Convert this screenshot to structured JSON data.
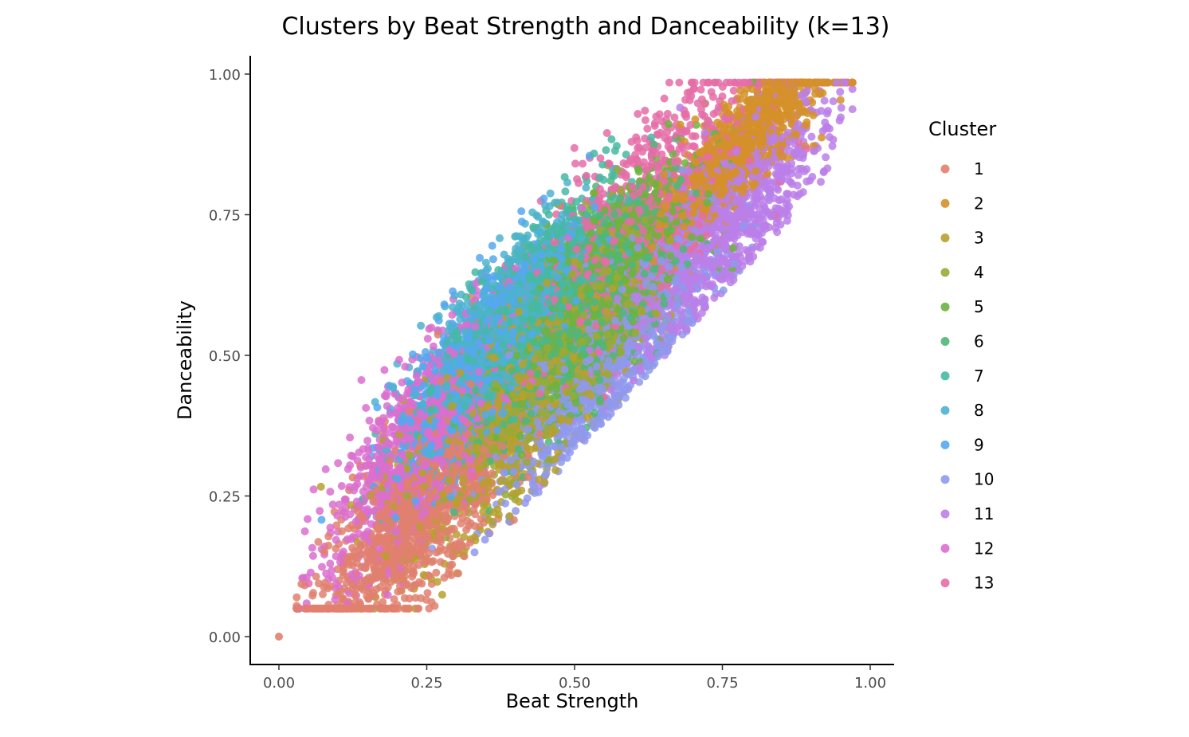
{
  "chart_data": {
    "type": "scatter",
    "title": "Clusters by Beat Strength and Danceability (k=13)",
    "xlabel": "Beat Strength",
    "ylabel": "Danceability",
    "xlim": [
      -0.05,
      1.04
    ],
    "ylim": [
      -0.05,
      1.03
    ],
    "x_ticks": [
      "0.00",
      "0.25",
      "0.50",
      "0.75",
      "1.00"
    ],
    "y_ticks": [
      "0.00",
      "0.25",
      "0.50",
      "0.75",
      "1.00"
    ],
    "grid": false,
    "legend": {
      "title": "Cluster",
      "placement": "right"
    },
    "point_count": 14000,
    "series": [
      {
        "name": "1",
        "color": "#E1806F",
        "center": [
          0.23,
          0.21
        ],
        "spread": [
          0.08,
          0.1
        ]
      },
      {
        "name": "2",
        "color": "#D5902A",
        "center": [
          0.78,
          0.87
        ],
        "spread": [
          0.07,
          0.06
        ]
      },
      {
        "name": "3",
        "color": "#B7A02E",
        "center": [
          0.4,
          0.42
        ],
        "spread": [
          0.1,
          0.11
        ]
      },
      {
        "name": "4",
        "color": "#9BA935",
        "center": [
          0.48,
          0.52
        ],
        "spread": [
          0.09,
          0.1
        ]
      },
      {
        "name": "5",
        "color": "#6DB33F",
        "center": [
          0.55,
          0.62
        ],
        "spread": [
          0.08,
          0.09
        ]
      },
      {
        "name": "6",
        "color": "#4FB778",
        "center": [
          0.52,
          0.58
        ],
        "spread": [
          0.08,
          0.09
        ]
      },
      {
        "name": "7",
        "color": "#47B9A3",
        "center": [
          0.42,
          0.58
        ],
        "spread": [
          0.07,
          0.08
        ]
      },
      {
        "name": "8",
        "color": "#4DB3CF",
        "center": [
          0.38,
          0.55
        ],
        "spread": [
          0.07,
          0.08
        ]
      },
      {
        "name": "9",
        "color": "#55A8EE",
        "center": [
          0.34,
          0.48
        ],
        "spread": [
          0.07,
          0.09
        ]
      },
      {
        "name": "10",
        "color": "#8F99EC",
        "center": [
          0.55,
          0.5
        ],
        "spread": [
          0.1,
          0.1
        ]
      },
      {
        "name": "11",
        "color": "#BB7FE9",
        "center": [
          0.74,
          0.72
        ],
        "spread": [
          0.09,
          0.09
        ]
      },
      {
        "name": "12",
        "color": "#DB6ECF",
        "center": [
          0.25,
          0.35
        ],
        "spread": [
          0.08,
          0.1
        ]
      },
      {
        "name": "13",
        "color": "#E56DA7",
        "center": [
          0.6,
          0.72
        ],
        "spread": [
          0.12,
          0.12
        ]
      }
    ]
  }
}
